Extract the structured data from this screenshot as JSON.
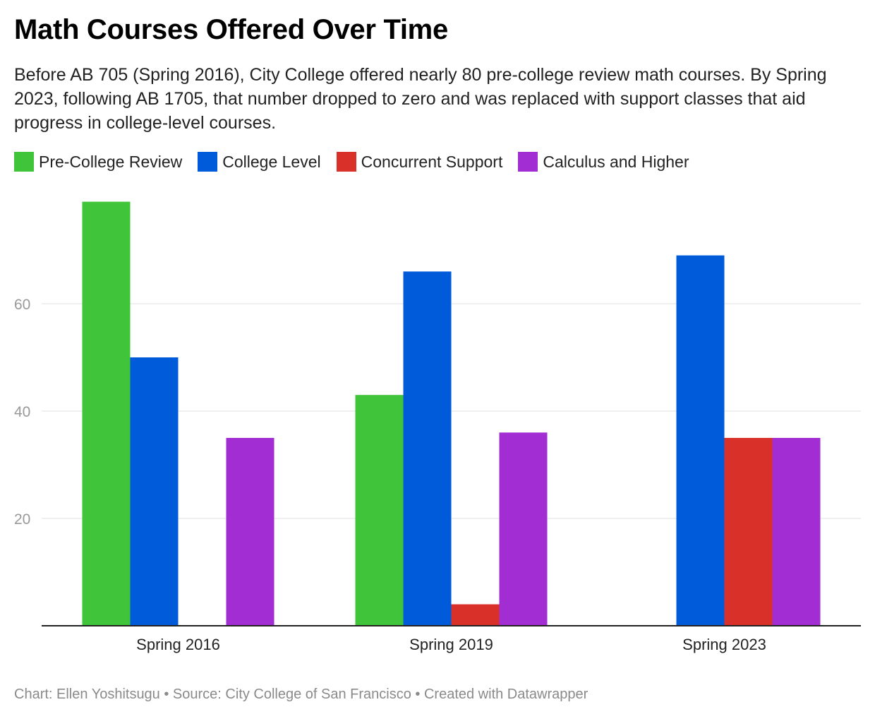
{
  "title": "Math Courses Offered Over Time",
  "subtitle": "Before AB 705 (Spring 2016), City College offered nearly 80 pre-college review math courses. By Spring 2023, following AB 1705, that number dropped to zero and was replaced with support classes that aid progress in college-level courses.",
  "footer": "Chart: Ellen Yoshitsugu • Source: City College of San Francisco • Created with Datawrapper",
  "chart_data": {
    "type": "bar",
    "title": "Math Courses Offered Over Time",
    "categories": [
      "Spring 2016",
      "Spring 2019",
      "Spring 2023"
    ],
    "series": [
      {
        "name": "Pre-College Review",
        "color": "#3fc43a",
        "values": [
          79,
          43,
          0
        ]
      },
      {
        "name": "College Level",
        "color": "#005bdb",
        "values": [
          50,
          66,
          69
        ]
      },
      {
        "name": "Concurrent Support",
        "color": "#d9302a",
        "values": [
          0,
          4,
          35
        ]
      },
      {
        "name": "Calculus and Higher",
        "color": "#a22ed3",
        "values": [
          35,
          36,
          35
        ]
      }
    ],
    "yticks": [
      20,
      40,
      60
    ],
    "ylim": [
      0,
      80
    ],
    "grid": true,
    "legend": "top-left",
    "xlabel": "",
    "ylabel": ""
  }
}
